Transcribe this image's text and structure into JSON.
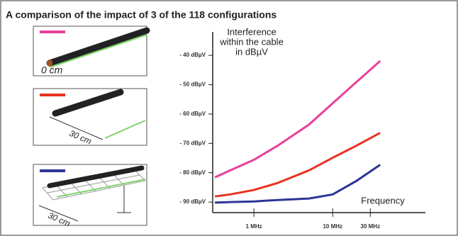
{
  "chart_data": {
    "type": "line",
    "title": "A comparison of the impact of 3 of the 118 configurations",
    "y_label": [
      "Interference",
      "within the cable",
      "in dBµV"
    ],
    "x_label": "Frequency",
    "annotations": [
      "0 cm",
      "30 cm",
      "30 cm"
    ],
    "x": [
      0.32,
      0.5,
      1,
      2,
      5,
      10,
      20,
      40
    ],
    "xscale": "log",
    "xlim": [
      0.3,
      150
    ],
    "xticks": [
      {
        "value": 1,
        "label": "1 MHz"
      },
      {
        "value": 10,
        "label": "10 MHz"
      },
      {
        "value": 30,
        "label": "30 MHz"
      }
    ],
    "ylim": [
      -93.6,
      -32
    ],
    "yticks": [
      {
        "value": -40,
        "label": "- 40 dBµV"
      },
      {
        "value": -50,
        "label": "- 50 dBµV"
      },
      {
        "value": -60,
        "label": "- 60 dBµV"
      },
      {
        "value": -70,
        "label": "- 70 dBµV"
      },
      {
        "value": -80,
        "label": "- 80 dBµV"
      },
      {
        "value": -90,
        "label": "- 90 dBµV"
      }
    ],
    "series": [
      {
        "color": "#e8409a",
        "values": [
          -81.6,
          -79.2,
          -75.6,
          -70.8,
          -63.6,
          -56.3,
          -49.1,
          -41.9
        ]
      },
      {
        "color": "#e8321e",
        "values": [
          -88.1,
          -87.4,
          -85.9,
          -83.5,
          -79.2,
          -74.9,
          -70.8,
          -66.4
        ]
      },
      {
        "color": "#2d3594",
        "values": [
          -90.2,
          -90,
          -89.8,
          -89.3,
          -88.8,
          -87.4,
          -82.8,
          -77.3
        ]
      }
    ]
  }
}
